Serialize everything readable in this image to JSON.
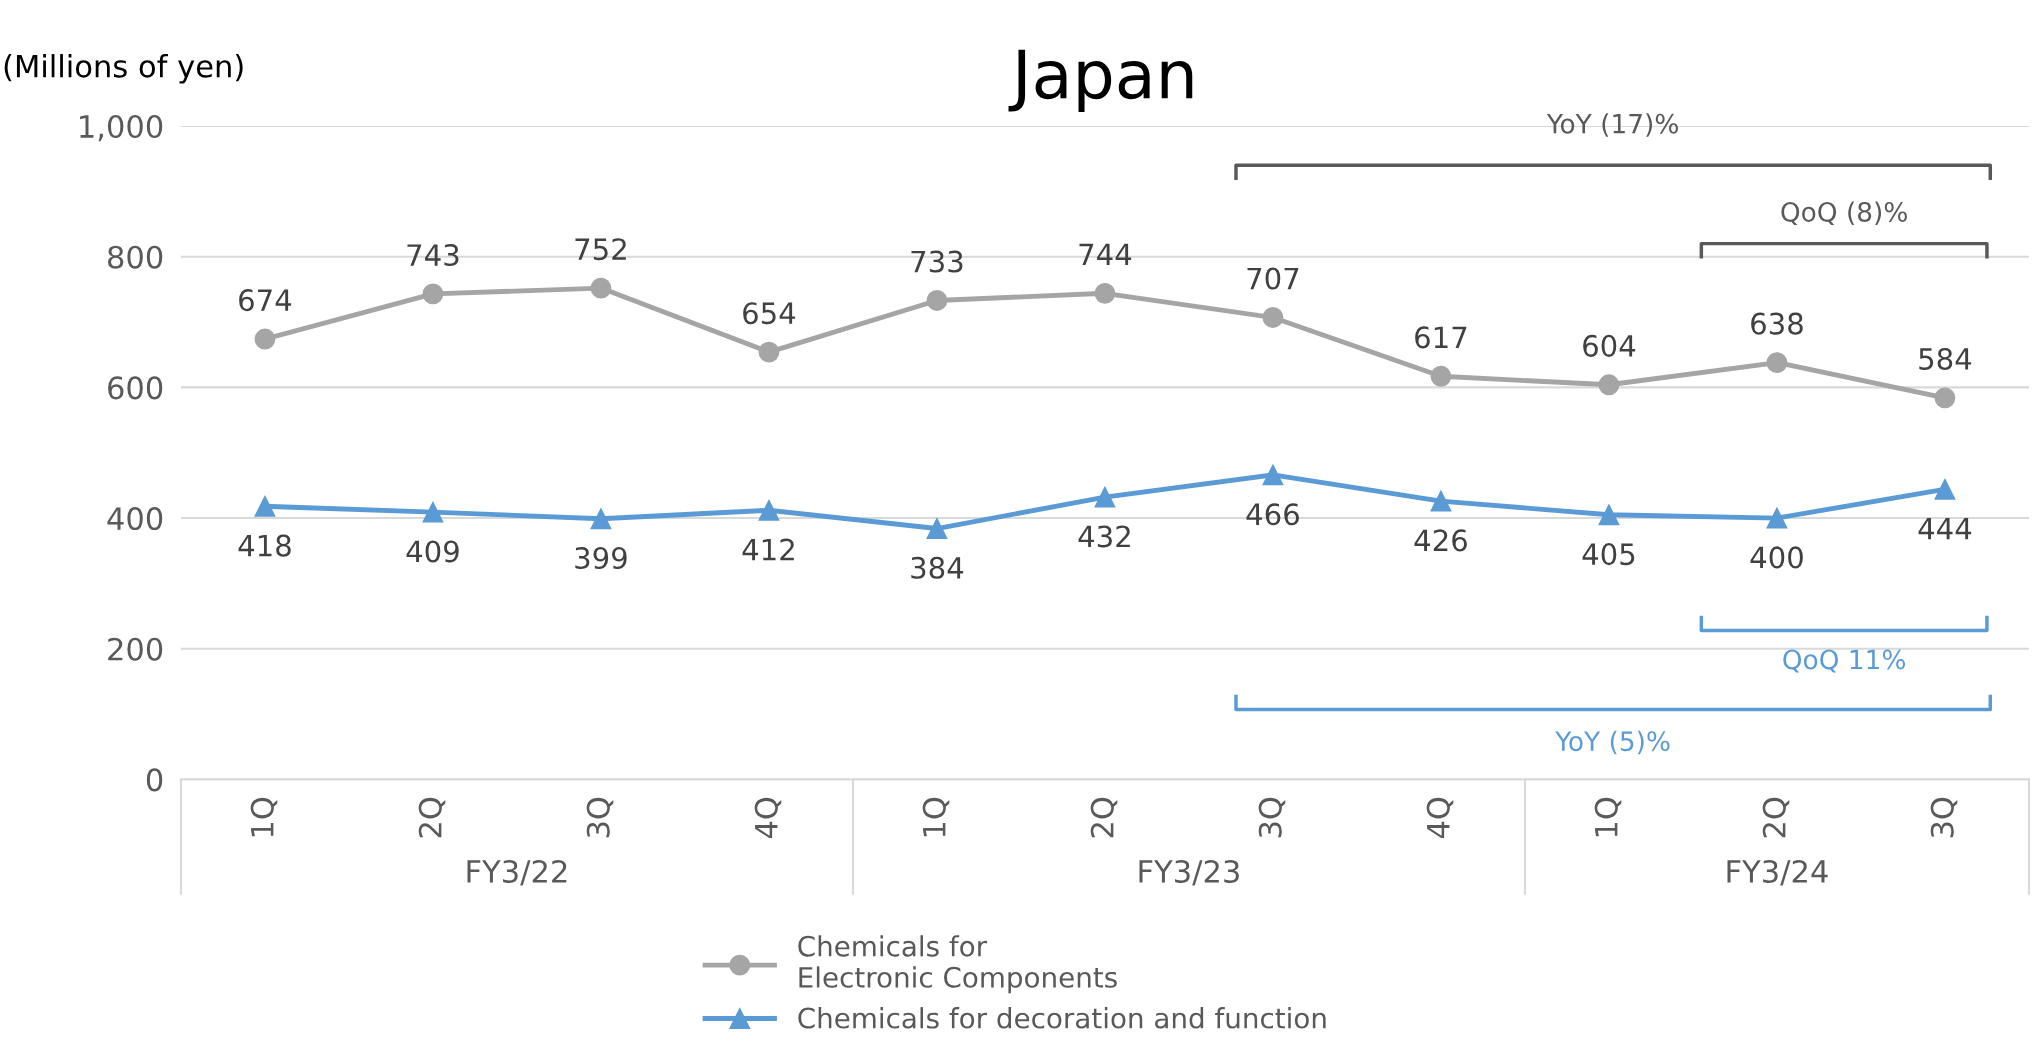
{
  "chart_data": {
    "type": "line",
    "title": "Japan",
    "ylabel": "(Millions of yen)",
    "categories": [
      "1Q",
      "2Q",
      "3Q",
      "4Q",
      "1Q",
      "2Q",
      "3Q",
      "4Q",
      "1Q",
      "2Q",
      "3Q"
    ],
    "series": [
      {
        "name": "Chemicals for\nElectronic Components",
        "color": "#a5a5a5",
        "marker": "circle",
        "values": [
          674,
          743,
          752,
          654,
          733,
          744,
          707,
          617,
          604,
          638,
          584
        ]
      },
      {
        "name": "Chemicals for decoration and function",
        "color": "#5b9bd5",
        "marker": "triangle",
        "values": [
          418,
          409,
          399,
          412,
          384,
          432,
          466,
          426,
          405,
          400,
          444
        ]
      }
    ],
    "ylim": [
      0,
      1000
    ],
    "yticks": [
      0,
      200,
      400,
      600,
      800,
      {
        "value": 1000,
        "label": "1,000"
      }
    ],
    "grid": "y",
    "legend": "bottom",
    "data_labels": true,
    "line_style": "solid",
    "annotations": [
      "FY3/22",
      "FY3/23",
      "FY3/24",
      "YoY (17)%",
      "QoQ (8)%",
      "QoQ 11%",
      "YoY (5)%"
    ]
  }
}
